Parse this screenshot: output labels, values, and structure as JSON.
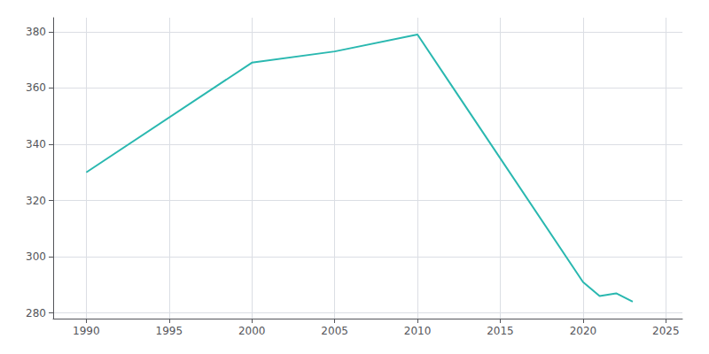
{
  "chart_data": {
    "type": "line",
    "x": [
      1990,
      2000,
      2005,
      2010,
      2020,
      2021,
      2022,
      2023
    ],
    "values": [
      330,
      369,
      373,
      379,
      291,
      286,
      287,
      284
    ],
    "color": "#2ab8b0",
    "xlim": [
      1988,
      2026
    ],
    "ylim": [
      278,
      385
    ],
    "xticks": [
      1990,
      1995,
      2000,
      2005,
      2010,
      2015,
      2020,
      2025
    ],
    "yticks": [
      280,
      300,
      320,
      340,
      360,
      380
    ],
    "grid": true
  }
}
